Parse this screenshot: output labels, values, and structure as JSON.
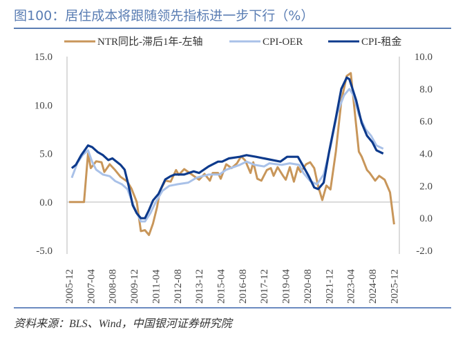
{
  "title": "图100：居住成本将跟随领先指标进一步下行（%）",
  "source": "资料来源：BLS、Wind，中国银河证券研究院",
  "chart_data": {
    "type": "line",
    "title": "图100：居住成本将跟随领先指标进一步下行（%）",
    "legend_position": "top",
    "grid": false,
    "x_tick_labels": [
      "2005-12",
      "2007-04",
      "2008-08",
      "2009-12",
      "2011-04",
      "2012-08",
      "2013-12",
      "2015-04",
      "2016-08",
      "2017-12",
      "2019-04",
      "2020-08",
      "2021-12",
      "2023-04",
      "2024-08",
      "2025-12"
    ],
    "left_axis": {
      "ylim": [
        -5,
        15
      ],
      "ticks": [
        "-5.0",
        "0.0",
        "5.0",
        "10.0",
        "15.0"
      ]
    },
    "right_axis": {
      "ylim": [
        -2,
        10
      ],
      "ticks": [
        "-2.0",
        "0.0",
        "2.0",
        "4.0",
        "6.0",
        "8.0",
        "10.0"
      ]
    },
    "series": [
      {
        "name": "NTR同比-滞后1年-左轴",
        "axis": "left",
        "color": "#c8965a",
        "x": [
          "2005-12",
          "2006-11",
          "2007-02",
          "2007-04",
          "2007-08",
          "2007-12",
          "2008-02",
          "2008-06",
          "2008-10",
          "2009-02",
          "2009-07",
          "2009-10",
          "2010-02",
          "2010-05",
          "2010-08",
          "2010-11",
          "2011-02",
          "2011-05",
          "2011-07",
          "2011-11",
          "2012-03",
          "2012-07",
          "2012-09",
          "2013-01",
          "2013-05",
          "2013-08",
          "2013-12",
          "2014-04",
          "2014-08",
          "2014-10",
          "2015-02",
          "2015-04",
          "2015-08",
          "2015-12",
          "2016-04",
          "2016-07",
          "2016-10",
          "2017-02",
          "2017-04",
          "2017-07",
          "2017-10",
          "2018-02",
          "2018-05",
          "2018-07",
          "2018-10",
          "2019-02",
          "2019-04",
          "2019-07",
          "2019-10",
          "2020-01",
          "2020-03",
          "2020-07",
          "2020-10",
          "2021-01",
          "2021-04",
          "2021-07",
          "2021-10",
          "2022-01",
          "2022-05",
          "2022-09",
          "2023-01",
          "2023-04",
          "2023-07",
          "2023-10",
          "2023-12",
          "2024-04",
          "2024-06",
          "2024-10",
          "2025-01",
          "2025-05",
          "2025-09",
          "2025-12"
        ],
        "values": [
          0,
          0,
          5.0,
          3.5,
          4.2,
          4.1,
          3.1,
          3.9,
          3.3,
          2.6,
          2.1,
          1.4,
          0,
          -3.0,
          -2.9,
          -3.4,
          -2.2,
          -0.5,
          1.1,
          2.2,
          2.1,
          3.3,
          2.8,
          3.4,
          3.0,
          2.7,
          2.3,
          2.9,
          2.2,
          3.0,
          3.0,
          2.4,
          3.9,
          3.5,
          4.0,
          4.7,
          4.3,
          3.0,
          4.1,
          2.4,
          2.2,
          3.3,
          3.5,
          2.7,
          3.6,
          2.7,
          2.3,
          3.6,
          2.1,
          3.6,
          3.1,
          3.9,
          4.1,
          3.5,
          1.6,
          0.2,
          1.7,
          1.3,
          5.2,
          10.4,
          13.0,
          13.3,
          9.2,
          5.2,
          4.7,
          3.3,
          3.0,
          2.2,
          2.7,
          2.3,
          1.0,
          -2.3
        ]
      },
      {
        "name": "CPI-OER",
        "axis": "right",
        "color": "#a9c1e8",
        "x": [
          "2006-02",
          "2006-06",
          "2006-10",
          "2007-02",
          "2007-05",
          "2007-08",
          "2008-01",
          "2008-06",
          "2008-10",
          "2009-03",
          "2009-07",
          "2009-12",
          "2010-05",
          "2010-08",
          "2010-12",
          "2011-04",
          "2011-09",
          "2012-02",
          "2012-08",
          "2013-04",
          "2013-10",
          "2014-07",
          "2015-03",
          "2015-08",
          "2016-06",
          "2016-11",
          "2017-05",
          "2017-12",
          "2018-04",
          "2019-01",
          "2019-07",
          "2020-02",
          "2020-05",
          "2020-10",
          "2021-03",
          "2021-08",
          "2022-01",
          "2022-06",
          "2022-11",
          "2023-03",
          "2023-06",
          "2023-10",
          "2024-03",
          "2024-07",
          "2024-11",
          "2025-04"
        ],
        "values": [
          2.5,
          3.4,
          3.9,
          4.2,
          3.5,
          3.0,
          2.7,
          2.6,
          2.3,
          2.1,
          1.8,
          0.7,
          -0.2,
          -0.2,
          0.3,
          1.0,
          1.7,
          2.0,
          2.1,
          2.2,
          2.5,
          2.7,
          2.7,
          3.0,
          3.3,
          3.5,
          3.3,
          3.2,
          3.4,
          3.3,
          3.4,
          3.3,
          2.8,
          2.3,
          2.1,
          2.7,
          4.4,
          6.5,
          7.6,
          8.0,
          7.6,
          6.4,
          5.5,
          5.1,
          4.5,
          4.3
        ]
      },
      {
        "name": "CPI-租金",
        "axis": "right",
        "color": "#0d3a8c",
        "x": [
          "2006-02",
          "2006-05",
          "2006-09",
          "2007-02",
          "2007-05",
          "2007-09",
          "2008-01",
          "2008-05",
          "2008-08",
          "2009-02",
          "2009-05",
          "2009-08",
          "2009-11",
          "2010-02",
          "2010-05",
          "2010-08",
          "2010-11",
          "2011-02",
          "2011-06",
          "2011-11",
          "2012-03",
          "2012-06",
          "2013-01",
          "2013-08",
          "2013-12",
          "2014-07",
          "2015-02",
          "2015-05",
          "2015-10",
          "2016-06",
          "2016-11",
          "2017-06",
          "2017-12",
          "2018-12",
          "2019-05",
          "2020-01",
          "2020-05",
          "2020-09",
          "2021-01",
          "2021-04",
          "2021-08",
          "2021-12",
          "2022-05",
          "2022-09",
          "2023-01",
          "2023-03",
          "2023-08",
          "2023-12",
          "2024-04",
          "2024-08",
          "2024-11",
          "2025-04"
        ],
        "values": [
          3.1,
          3.3,
          3.9,
          4.5,
          4.4,
          4.1,
          3.9,
          3.6,
          3.7,
          3.3,
          3.0,
          2.0,
          0.8,
          0.3,
          0.0,
          0.0,
          0.5,
          1.1,
          1.5,
          2.4,
          2.6,
          2.7,
          2.7,
          2.9,
          2.8,
          3.2,
          3.5,
          3.5,
          3.7,
          3.8,
          3.9,
          3.8,
          3.7,
          3.5,
          3.8,
          3.8,
          3.2,
          2.6,
          1.9,
          1.8,
          2.2,
          4.1,
          6.2,
          8.0,
          8.7,
          8.6,
          7.3,
          5.9,
          5.1,
          4.7,
          4.2,
          4.0
        ]
      }
    ]
  }
}
